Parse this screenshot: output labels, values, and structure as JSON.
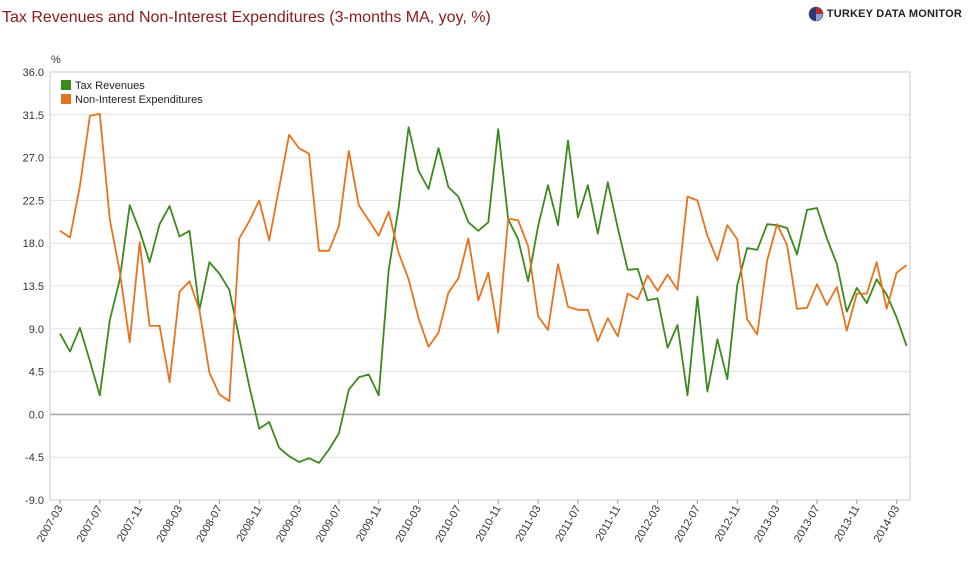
{
  "header": {
    "title": "Tax Revenues and Non-Interest Expenditures (3-months MA, yoy, %)",
    "logo_text": "TURKEY DATA MONITOR"
  },
  "chart_data": {
    "type": "line",
    "title": "Tax Revenues and Non-Interest Expenditures (3-months MA, yoy, %)",
    "ylabel": "%",
    "xlabel": "",
    "ylim": [
      -9.0,
      36.0
    ],
    "yticks": [
      "36.0",
      "31.5",
      "27.0",
      "22.5",
      "18.0",
      "13.5",
      "9.0",
      "4.5",
      "0.0",
      "-4.5",
      "-9.0"
    ],
    "xticks": [
      "2007-03",
      "2007-07",
      "2007-11",
      "2008-03",
      "2008-07",
      "2008-11",
      "2009-03",
      "2009-07",
      "2009-11",
      "2010-03",
      "2010-07",
      "2010-11",
      "2011-03",
      "2011-07",
      "2011-11",
      "2012-03",
      "2012-07",
      "2012-11",
      "2013-03",
      "2013-07",
      "2013-11",
      "2014-03"
    ],
    "x_start": "2007-03",
    "legend_position": "top-left",
    "grid": true,
    "series": [
      {
        "name": "Tax Revenues",
        "color": "#3b8a1e",
        "values": [
          8.5,
          6.6,
          9.1,
          5.6,
          2.0,
          9.9,
          14.2,
          22.0,
          19.3,
          16.0,
          20.0,
          21.9,
          18.7,
          19.3,
          11.0,
          16.0,
          14.8,
          13.1,
          8.0,
          3.0,
          -1.5,
          -0.8,
          -3.5,
          -4.4,
          -5.0,
          -4.6,
          -5.1,
          -3.7,
          -2.0,
          2.6,
          3.9,
          4.2,
          2.0,
          15.2,
          21.7,
          30.2,
          25.6,
          23.7,
          28.0,
          23.9,
          22.9,
          20.2,
          19.3,
          20.2,
          30.0,
          20.5,
          18.4,
          14.0,
          19.8,
          24.1,
          19.9,
          28.8,
          20.7,
          24.1,
          19.0,
          24.4,
          19.6,
          15.2,
          15.3,
          12.0,
          12.2,
          7.0,
          9.4,
          2.0,
          12.4,
          2.4,
          7.9,
          3.7,
          13.6,
          17.5,
          17.3,
          20.0,
          19.9,
          19.6,
          16.8,
          21.5,
          21.7,
          18.5,
          15.8,
          10.8,
          13.3,
          11.7,
          14.2,
          12.6,
          10.2,
          7.2
        ]
      },
      {
        "name": "Non-Interest Expenditures",
        "color": "#e8731e",
        "values": [
          19.3,
          18.6,
          24.0,
          31.4,
          31.6,
          20.5,
          15.0,
          7.6,
          18.1,
          9.3,
          9.3,
          3.4,
          12.9,
          14.0,
          11.0,
          4.4,
          2.1,
          1.4,
          18.5,
          20.3,
          22.5,
          18.3,
          23.8,
          29.4,
          28.0,
          27.4,
          17.2,
          17.2,
          19.8,
          27.7,
          22.0,
          20.4,
          18.8,
          21.3,
          17.0,
          14.2,
          10.1,
          7.1,
          8.6,
          12.8,
          14.3,
          18.5,
          12.0,
          14.9,
          8.6,
          20.6,
          20.4,
          17.7,
          10.3,
          8.9,
          15.8,
          11.3,
          11.0,
          11.0,
          7.7,
          10.1,
          8.2,
          12.7,
          12.1,
          14.6,
          13.0,
          14.7,
          13.1,
          22.9,
          22.5,
          18.8,
          16.2,
          19.9,
          18.4,
          10.0,
          8.4,
          16.2,
          20.0,
          17.8,
          11.1,
          11.2,
          13.7,
          11.5,
          13.4,
          8.8,
          12.7,
          12.7,
          16.0,
          11.1,
          14.9,
          15.7
        ]
      }
    ]
  }
}
